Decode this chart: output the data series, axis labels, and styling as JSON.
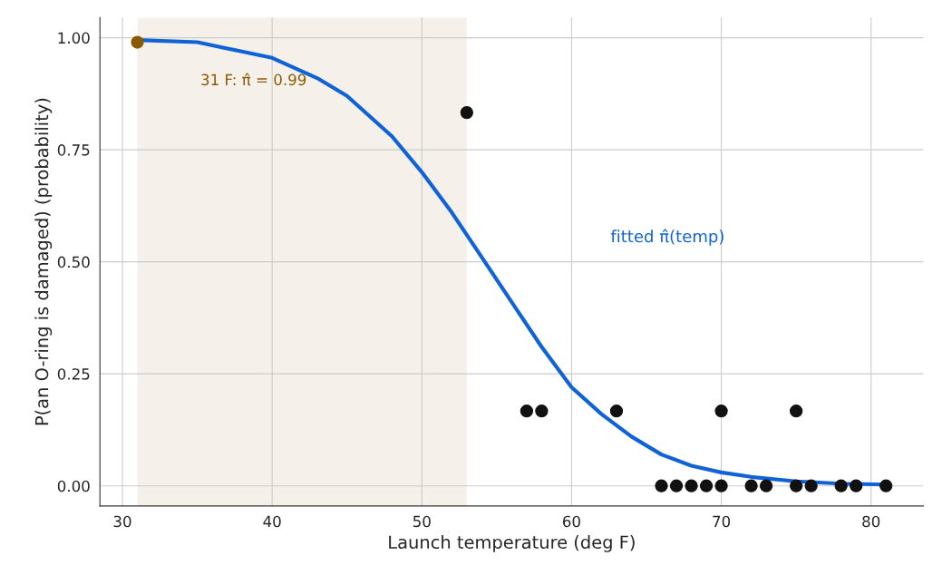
{
  "chart_data": {
    "type": "scatter",
    "xlabel": "Launch temperature (deg F)",
    "ylabel": "P(an O-ring is damaged) (probability)",
    "xlim": [
      28.5,
      83.5
    ],
    "ylim": [
      -0.045,
      1.045
    ],
    "xticks": [
      30,
      40,
      50,
      60,
      70,
      80
    ],
    "yticks": [
      {
        "value": 0,
        "label": "0.00"
      },
      {
        "value": 0.25,
        "label": "0.25"
      },
      {
        "value": 0.5,
        "label": "0.50"
      },
      {
        "value": 0.75,
        "label": "0.75"
      },
      {
        "value": 1,
        "label": "1.00"
      }
    ],
    "grid": true,
    "marker": "circle",
    "bands": [
      {
        "axis": "x",
        "from": 31,
        "to": 53,
        "color": "#f5f0ea"
      }
    ],
    "series": [
      {
        "type": "line",
        "marker": "none",
        "name": "fitted π̂(temp)",
        "color": "#0f63d6",
        "x": [
          31,
          35,
          40,
          43,
          45,
          48,
          50,
          52,
          54,
          56,
          58,
          60,
          62,
          64,
          66,
          68,
          70,
          72,
          75,
          78,
          81
        ],
        "values": [
          0.995,
          0.99,
          0.955,
          0.91,
          0.87,
          0.78,
          0.7,
          0.61,
          0.51,
          0.41,
          0.31,
          0.22,
          0.16,
          0.11,
          0.07,
          0.045,
          0.03,
          0.02,
          0.01,
          0.005,
          0.003
        ]
      },
      {
        "color": "#111111",
        "x": [
          53,
          57,
          58,
          63,
          66,
          67,
          68,
          69,
          70,
          70,
          72,
          73,
          75,
          75,
          76,
          78,
          79,
          81
        ],
        "values": [
          0.833,
          0.167,
          0.167,
          0.167,
          0,
          0,
          0,
          0,
          0,
          0.167,
          0,
          0,
          0,
          0.167,
          0,
          0,
          0,
          0
        ]
      },
      {
        "type": "scatter",
        "name": "31 F: π̂ = 0.99",
        "color": "#8b5a00",
        "x": [
          31
        ],
        "values": [
          0.99
        ]
      }
    ]
  }
}
